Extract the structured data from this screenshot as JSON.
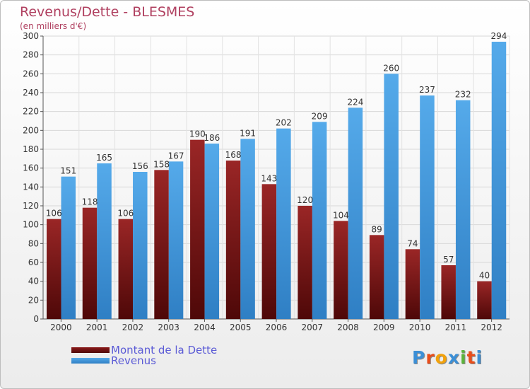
{
  "header": {
    "title": "Revenus/Dette - BLESMES",
    "subtitle": "(en milliers d'€)"
  },
  "chart_data": {
    "type": "bar",
    "categories": [
      "2000",
      "2001",
      "2002",
      "2003",
      "2004",
      "2005",
      "2006",
      "2007",
      "2008",
      "2009",
      "2010",
      "2011",
      "2012"
    ],
    "series": [
      {
        "name": "Montant de la Dette",
        "color": "#8b1a1a",
        "values": [
          106,
          118,
          106,
          158,
          190,
          168,
          143,
          120,
          104,
          89,
          74,
          57,
          40
        ]
      },
      {
        "name": "Revenus",
        "color": "#4a9fe0",
        "values": [
          151,
          165,
          156,
          167,
          186,
          191,
          202,
          209,
          224,
          260,
          237,
          232,
          294
        ]
      }
    ],
    "ylim": [
      0,
      300
    ],
    "y_ticks": [
      0,
      20,
      40,
      60,
      80,
      100,
      120,
      140,
      160,
      180,
      200,
      220,
      240,
      260,
      280,
      300
    ],
    "grid": true,
    "legend_position": "bottom-left"
  },
  "legend": [
    {
      "label": "Montant de la Dette",
      "color": "#6e0f0f"
    },
    {
      "label": "Revenus",
      "color": "#4a9fe0"
    }
  ],
  "logo": {
    "letters": [
      "P",
      "r",
      "o",
      "x",
      "i",
      "t",
      "i"
    ],
    "colors": [
      "#3b8fd6",
      "#e94e1b",
      "#f2a20c",
      "#3b8fd6",
      "#5bb33a",
      "#e94e1b",
      "#3b8fd6"
    ]
  }
}
